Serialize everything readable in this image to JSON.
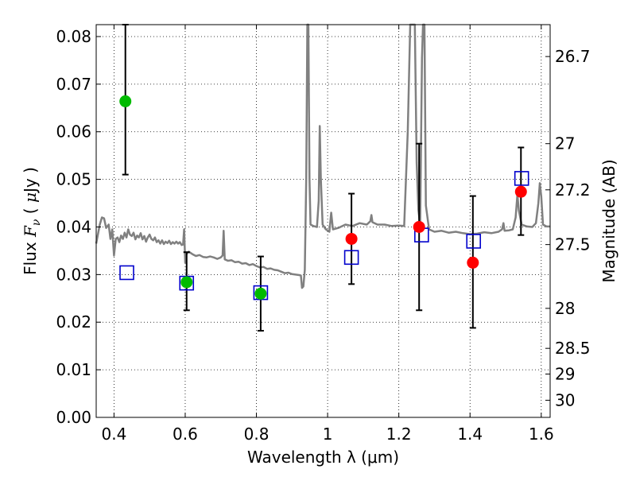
{
  "chart_data": {
    "type": "scatter",
    "xlabel": "Wavelength  λ (μm)",
    "ylabel_parts": [
      "Flux  ",
      "F",
      "ν",
      "  (  ",
      "μ",
      "Jy  )"
    ],
    "y2label": "Magnitude (AB)",
    "xlim": [
      0.35,
      1.625
    ],
    "ylim": [
      0.0,
      0.0825
    ],
    "grid": true,
    "x_ticks": [
      0.4,
      0.6,
      0.8,
      1.0,
      1.2,
      1.4,
      1.6
    ],
    "x_tick_labels": [
      "0.4",
      "0.6",
      "0.8",
      "1",
      "1.2",
      "1.4",
      "1.6"
    ],
    "y_ticks": [
      0.0,
      0.01,
      0.02,
      0.03,
      0.04,
      0.05,
      0.06,
      0.07,
      0.08
    ],
    "y_tick_labels": [
      "0.00",
      "0.01",
      "0.02",
      "0.03",
      "0.04",
      "0.05",
      "0.06",
      "0.07",
      "0.08"
    ],
    "y2_ticks": [
      {
        "label": "26.7",
        "flux": 0.0758
      },
      {
        "label": "27",
        "flux": 0.0575
      },
      {
        "label": "27.2",
        "flux": 0.0478
      },
      {
        "label": "27.5",
        "flux": 0.0363
      },
      {
        "label": "28",
        "flux": 0.0229
      },
      {
        "label": "28.5",
        "flux": 0.0145
      },
      {
        "label": "29",
        "flux": 0.0091
      },
      {
        "label": "30",
        "flux": 0.0036
      }
    ],
    "errorbars": [
      {
        "x": 0.432,
        "low": 0.051,
        "high": 0.0825
      },
      {
        "x": 0.604,
        "low": 0.0225,
        "high": 0.0347
      },
      {
        "x": 0.812,
        "low": 0.0182,
        "high": 0.0338
      },
      {
        "x": 1.067,
        "low": 0.028,
        "high": 0.047
      },
      {
        "x": 1.257,
        "low": 0.0225,
        "high": 0.0575
      },
      {
        "x": 1.408,
        "low": 0.0188,
        "high": 0.0465
      },
      {
        "x": 1.543,
        "low": 0.0383,
        "high": 0.0567
      }
    ],
    "series": [
      {
        "color": "#00bb00",
        "marker": "circle",
        "points": [
          [
            0.432,
            0.0664
          ],
          [
            0.604,
            0.0284
          ],
          [
            0.812,
            0.026
          ]
        ]
      },
      {
        "color": "#ff0000",
        "marker": "circle",
        "points": [
          [
            1.067,
            0.0375
          ],
          [
            1.257,
            0.04
          ],
          [
            1.408,
            0.0325
          ],
          [
            1.543,
            0.0474
          ]
        ]
      },
      {
        "color": "#0000cc",
        "marker": "open-square",
        "points": [
          [
            0.436,
            0.0304
          ],
          [
            0.604,
            0.0282
          ],
          [
            0.812,
            0.0262
          ],
          [
            1.067,
            0.0336
          ],
          [
            1.264,
            0.0383
          ],
          [
            1.41,
            0.037
          ],
          [
            1.545,
            0.0502
          ]
        ]
      }
    ],
    "spectrum": {
      "color": "#808080",
      "points": [
        [
          0.35,
          0.0365
        ],
        [
          0.36,
          0.0405
        ],
        [
          0.366,
          0.042
        ],
        [
          0.372,
          0.0418
        ],
        [
          0.378,
          0.0398
        ],
        [
          0.385,
          0.0405
        ],
        [
          0.39,
          0.0375
        ],
        [
          0.395,
          0.0395
        ],
        [
          0.4,
          0.034
        ],
        [
          0.405,
          0.0375
        ],
        [
          0.41,
          0.0378
        ],
        [
          0.415,
          0.0368
        ],
        [
          0.42,
          0.0382
        ],
        [
          0.425,
          0.0375
        ],
        [
          0.43,
          0.0388
        ],
        [
          0.435,
          0.0378
        ],
        [
          0.44,
          0.0395
        ],
        [
          0.445,
          0.0384
        ],
        [
          0.45,
          0.0381
        ],
        [
          0.455,
          0.0388
        ],
        [
          0.46,
          0.0374
        ],
        [
          0.465,
          0.0382
        ],
        [
          0.47,
          0.0378
        ],
        [
          0.475,
          0.0387
        ],
        [
          0.48,
          0.0374
        ],
        [
          0.485,
          0.0381
        ],
        [
          0.49,
          0.0369
        ],
        [
          0.495,
          0.0378
        ],
        [
          0.5,
          0.0384
        ],
        [
          0.505,
          0.0375
        ],
        [
          0.51,
          0.0372
        ],
        [
          0.515,
          0.0378
        ],
        [
          0.52,
          0.0368
        ],
        [
          0.525,
          0.0372
        ],
        [
          0.53,
          0.0365
        ],
        [
          0.535,
          0.0372
        ],
        [
          0.54,
          0.0364
        ],
        [
          0.545,
          0.0369
        ],
        [
          0.55,
          0.0366
        ],
        [
          0.555,
          0.0371
        ],
        [
          0.56,
          0.0364
        ],
        [
          0.565,
          0.0368
        ],
        [
          0.57,
          0.0365
        ],
        [
          0.575,
          0.0369
        ],
        [
          0.58,
          0.0365
        ],
        [
          0.585,
          0.0368
        ],
        [
          0.59,
          0.0362
        ],
        [
          0.594,
          0.0363
        ],
        [
          0.597,
          0.0395
        ],
        [
          0.6,
          0.0325
        ],
        [
          0.603,
          0.0342
        ],
        [
          0.606,
          0.0345
        ],
        [
          0.61,
          0.0348
        ],
        [
          0.62,
          0.0343
        ],
        [
          0.63,
          0.0339
        ],
        [
          0.64,
          0.0341
        ],
        [
          0.65,
          0.0337
        ],
        [
          0.66,
          0.0336
        ],
        [
          0.67,
          0.0338
        ],
        [
          0.68,
          0.0336
        ],
        [
          0.69,
          0.0333
        ],
        [
          0.7,
          0.0336
        ],
        [
          0.705,
          0.034
        ],
        [
          0.708,
          0.0392
        ],
        [
          0.711,
          0.0332
        ],
        [
          0.72,
          0.0329
        ],
        [
          0.73,
          0.033
        ],
        [
          0.74,
          0.0326
        ],
        [
          0.75,
          0.0327
        ],
        [
          0.76,
          0.0323
        ],
        [
          0.77,
          0.0324
        ],
        [
          0.78,
          0.032
        ],
        [
          0.79,
          0.0322
        ],
        [
          0.8,
          0.0318
        ],
        [
          0.81,
          0.0315
        ],
        [
          0.82,
          0.0316
        ],
        [
          0.83,
          0.0312
        ],
        [
          0.84,
          0.0313
        ],
        [
          0.85,
          0.031
        ],
        [
          0.86,
          0.0309
        ],
        [
          0.87,
          0.0306
        ],
        [
          0.88,
          0.0303
        ],
        [
          0.89,
          0.0304
        ],
        [
          0.9,
          0.0301
        ],
        [
          0.91,
          0.03
        ],
        [
          0.92,
          0.0299
        ],
        [
          0.925,
          0.0298
        ],
        [
          0.928,
          0.0272
        ],
        [
          0.932,
          0.0275
        ],
        [
          0.936,
          0.031
        ],
        [
          0.94,
          0.05
        ],
        [
          0.943,
          0.0825
        ],
        [
          0.946,
          0.0825
        ],
        [
          0.949,
          0.05
        ],
        [
          0.952,
          0.0405
        ],
        [
          0.96,
          0.0402
        ],
        [
          0.97,
          0.04
        ],
        [
          0.975,
          0.0455
        ],
        [
          0.978,
          0.0612
        ],
        [
          0.981,
          0.05
        ],
        [
          0.986,
          0.0405
        ],
        [
          0.995,
          0.0395
        ],
        [
          1.005,
          0.039
        ],
        [
          1.01,
          0.043
        ],
        [
          1.015,
          0.0395
        ],
        [
          1.03,
          0.0398
        ],
        [
          1.05,
          0.0405
        ],
        [
          1.07,
          0.0402
        ],
        [
          1.09,
          0.0408
        ],
        [
          1.11,
          0.0405
        ],
        [
          1.12,
          0.0412
        ],
        [
          1.123,
          0.0425
        ],
        [
          1.126,
          0.041
        ],
        [
          1.14,
          0.0405
        ],
        [
          1.16,
          0.0405
        ],
        [
          1.18,
          0.0402
        ],
        [
          1.2,
          0.0403
        ],
        [
          1.215,
          0.0402
        ],
        [
          1.225,
          0.06
        ],
        [
          1.232,
          0.0825
        ],
        [
          1.245,
          0.0825
        ],
        [
          1.25,
          0.0535
        ],
        [
          1.255,
          0.0435
        ],
        [
          1.26,
          0.0405
        ],
        [
          1.265,
          0.0755
        ],
        [
          1.268,
          0.0825
        ],
        [
          1.272,
          0.0825
        ],
        [
          1.276,
          0.0445
        ],
        [
          1.285,
          0.0395
        ],
        [
          1.3,
          0.039
        ],
        [
          1.32,
          0.0392
        ],
        [
          1.34,
          0.0388
        ],
        [
          1.36,
          0.039
        ],
        [
          1.38,
          0.0387
        ],
        [
          1.4,
          0.0385
        ],
        [
          1.42,
          0.0386
        ],
        [
          1.44,
          0.0389
        ],
        [
          1.46,
          0.0387
        ],
        [
          1.48,
          0.039
        ],
        [
          1.49,
          0.0395
        ],
        [
          1.494,
          0.0408
        ],
        [
          1.497,
          0.0392
        ],
        [
          1.51,
          0.0393
        ],
        [
          1.52,
          0.0395
        ],
        [
          1.528,
          0.042
        ],
        [
          1.533,
          0.0468
        ],
        [
          1.537,
          0.0435
        ],
        [
          1.545,
          0.0405
        ],
        [
          1.56,
          0.0401
        ],
        [
          1.575,
          0.04
        ],
        [
          1.585,
          0.0408
        ],
        [
          1.592,
          0.045
        ],
        [
          1.596,
          0.0492
        ],
        [
          1.6,
          0.0465
        ],
        [
          1.605,
          0.0405
        ],
        [
          1.615,
          0.0401
        ],
        [
          1.625,
          0.0401
        ]
      ]
    }
  }
}
